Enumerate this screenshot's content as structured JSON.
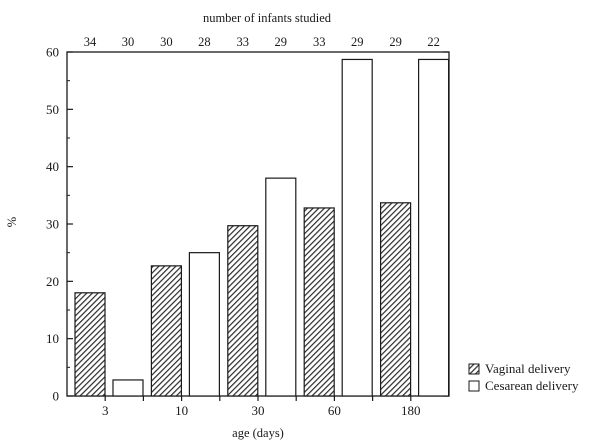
{
  "chart_data": {
    "type": "bar",
    "top_title": "number of infants studied",
    "xlabel": "age (days)",
    "ylabel": "%",
    "ylim": [
      0,
      60
    ],
    "yticks": [
      "0",
      "10",
      "20",
      "30",
      "40",
      "50",
      "60"
    ],
    "categories": [
      "3",
      "10",
      "30",
      "60",
      "180"
    ],
    "series": [
      {
        "name": "Vaginal delivery",
        "values": [
          18,
          22.7,
          29.7,
          32.8,
          33.7
        ],
        "counts": [
          "34",
          "30",
          "33",
          "33",
          "29"
        ],
        "pattern": "hatched"
      },
      {
        "name": "Cesarean delivery",
        "values": [
          2.8,
          25,
          38,
          58.7,
          58.7
        ],
        "counts": [
          "30",
          "28",
          "29",
          "29",
          "22"
        ],
        "pattern": "white"
      }
    ],
    "legend_position": "bottom-right",
    "grid": false
  }
}
